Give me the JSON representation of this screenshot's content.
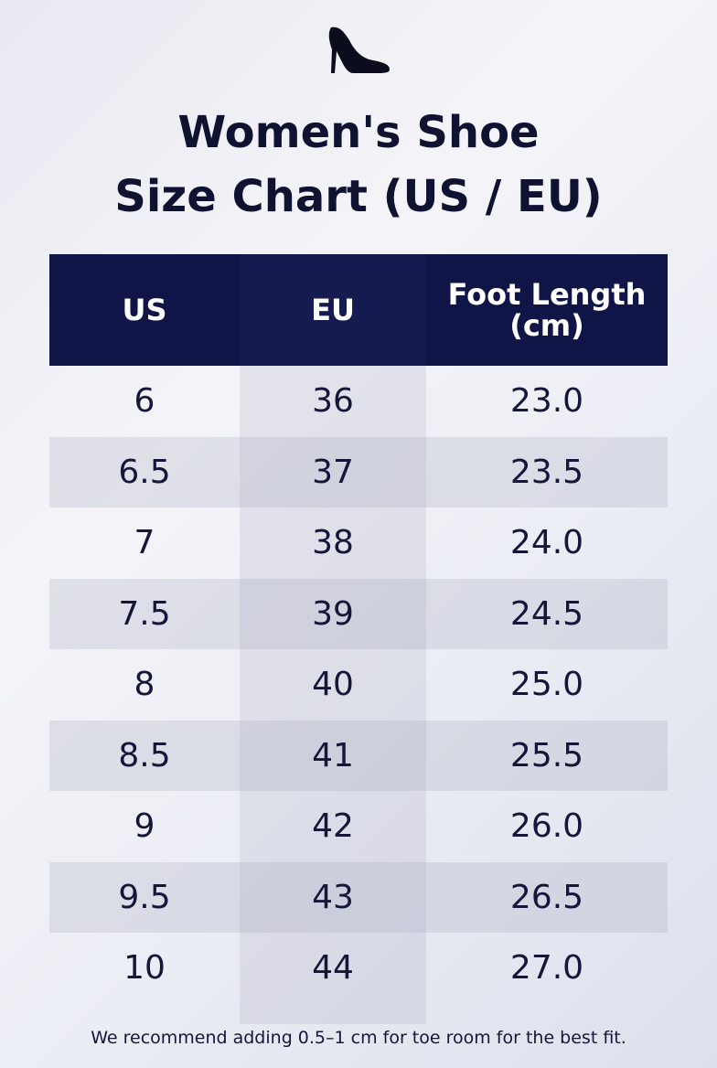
{
  "icon": "high-heel-shoe-icon",
  "title": {
    "line1": "Women's Shoe",
    "line2": "Size Chart (US / EU)"
  },
  "colors": {
    "header_bg": "#101447",
    "header_text": "#ffffff",
    "text": "#0f1230"
  },
  "chart_data": {
    "type": "table",
    "title": "Women's Shoe Size Chart (US / EU)",
    "columns": [
      "US",
      "EU",
      "Foot Length (cm)"
    ],
    "header_lines": [
      [
        "US"
      ],
      [
        "EU"
      ],
      [
        "Foot Length",
        "(cm)"
      ]
    ],
    "rows": [
      [
        "6",
        "36",
        "23.0"
      ],
      [
        "6.5",
        "37",
        "23.5"
      ],
      [
        "7",
        "38",
        "24.0"
      ],
      [
        "7.5",
        "39",
        "24.5"
      ],
      [
        "8",
        "40",
        "25.0"
      ],
      [
        "8.5",
        "41",
        "25.5"
      ],
      [
        "9",
        "42",
        "26.0"
      ],
      [
        "9.5",
        "43",
        "26.5"
      ],
      [
        "10",
        "44",
        "27.0"
      ]
    ],
    "footnote": "We recommend adding 0.5–1 cm for toe room for the best fit."
  }
}
